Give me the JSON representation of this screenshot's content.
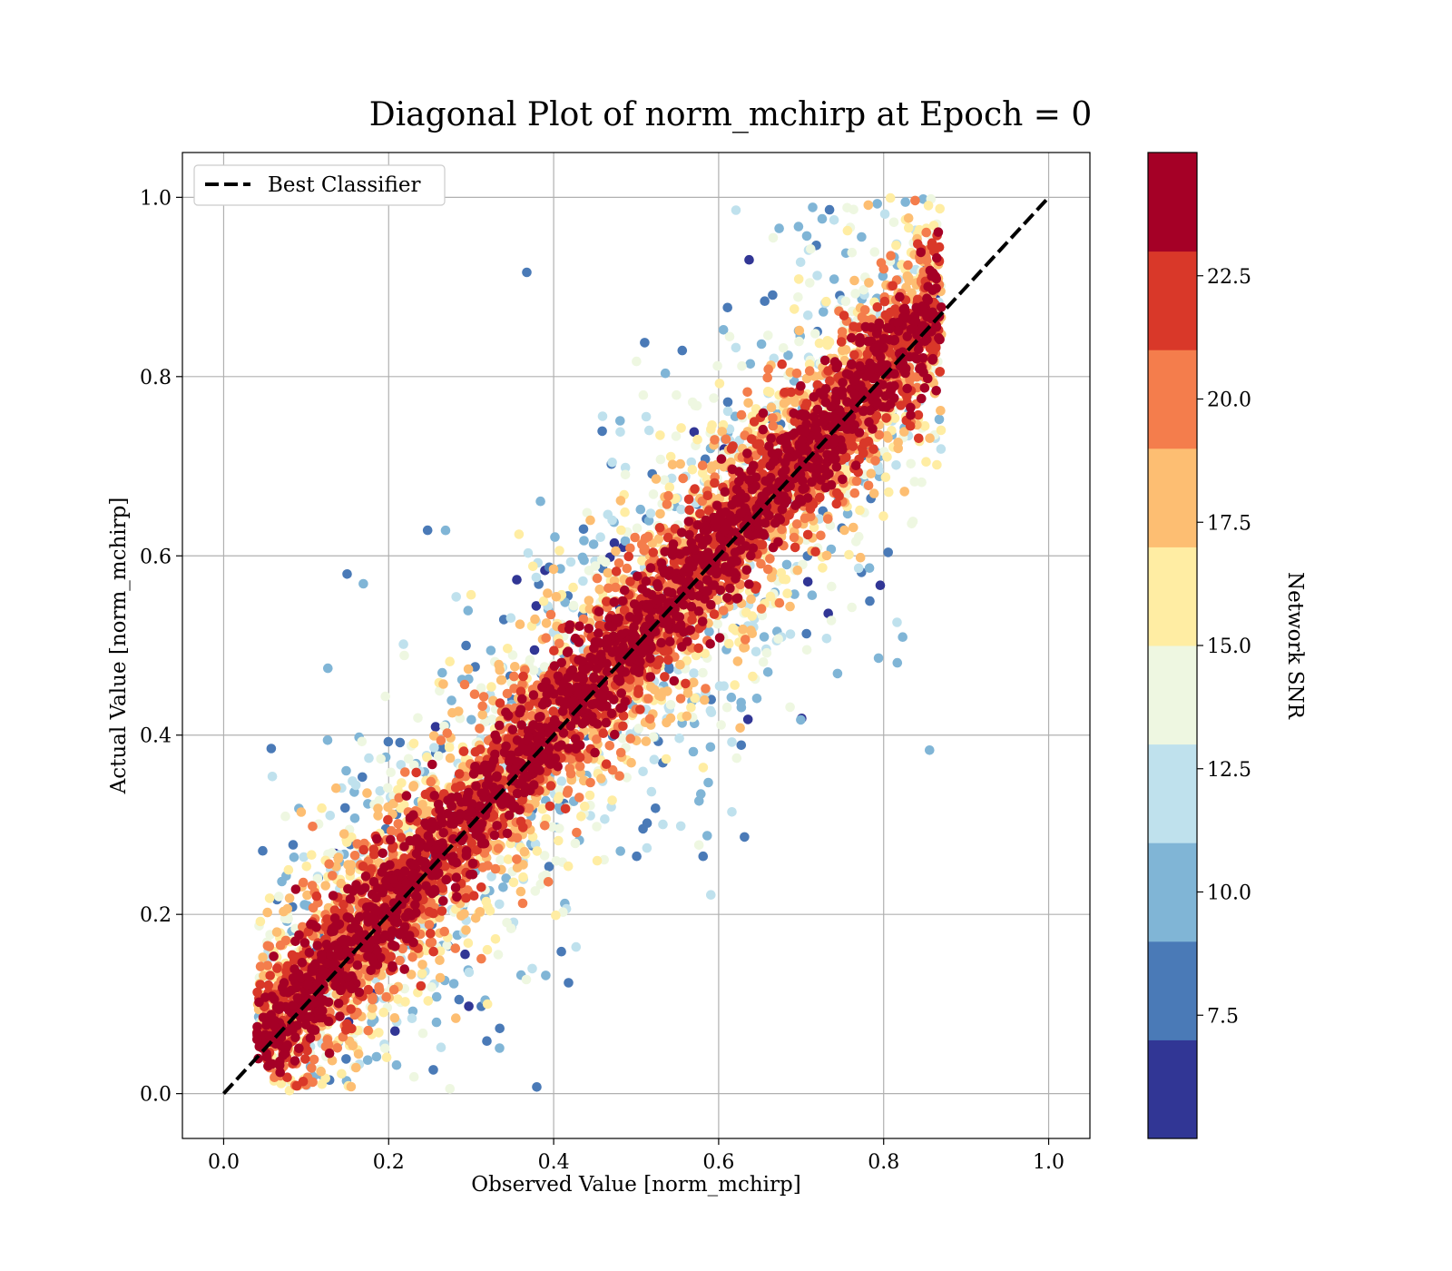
{
  "chart_data": {
    "type": "scatter",
    "title": "Diagonal Plot of norm_mchirp at Epoch = 0",
    "xlabel": "Observed Value [norm_mchirp]",
    "ylabel": "Actual Value [norm_mchirp]",
    "xlim": [
      -0.05,
      1.05
    ],
    "ylim": [
      -0.05,
      1.05
    ],
    "xticks": [
      "0.0",
      "0.2",
      "0.4",
      "0.6",
      "0.8",
      "1.0"
    ],
    "yticks": [
      "0.0",
      "0.2",
      "0.4",
      "0.6",
      "0.8",
      "1.0"
    ],
    "grid": true,
    "legend": {
      "position": "top-left",
      "entries": [
        "Best Classifier"
      ]
    },
    "reference_line": {
      "name": "Best Classifier",
      "style": "dashed",
      "color": "#000000",
      "from": [
        0,
        0
      ],
      "to": [
        1,
        1
      ]
    },
    "colorbar": {
      "label": "Network SNR",
      "range": [
        5,
        25
      ],
      "ticks": [
        "7.5",
        "10.0",
        "12.5",
        "15.0",
        "17.5",
        "20.0",
        "22.5"
      ],
      "colors": [
        "#313695",
        "#4575b4",
        "#74add1",
        "#abd9e9",
        "#e0f3f8",
        "#ffffbf",
        "#fee090",
        "#fdae61",
        "#f46d43",
        "#d73027",
        "#a50026"
      ],
      "display_colors": [
        "#313695",
        "#4a7ab7",
        "#80b5d6",
        "#bfe1ed",
        "#eef7e1",
        "#ffeda3",
        "#fdbe72",
        "#f47d4c",
        "#d93829",
        "#a50026"
      ]
    },
    "point_cloud": {
      "x_range": [
        0.04,
        0.87
      ],
      "y_range": [
        0.0,
        1.0
      ],
      "point_count": 7000,
      "note_colors": "high SNR points cluster along the diagonal, low SNR points scatter farther away"
    }
  }
}
